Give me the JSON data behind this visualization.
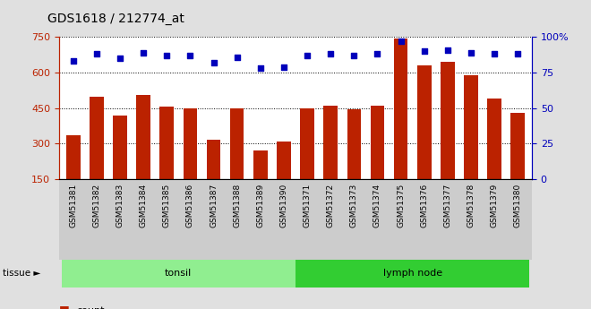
{
  "title": "GDS1618 / 212774_at",
  "samples": [
    "GSM51381",
    "GSM51382",
    "GSM51383",
    "GSM51384",
    "GSM51385",
    "GSM51386",
    "GSM51387",
    "GSM51388",
    "GSM51389",
    "GSM51390",
    "GSM51371",
    "GSM51372",
    "GSM51373",
    "GSM51374",
    "GSM51375",
    "GSM51376",
    "GSM51377",
    "GSM51378",
    "GSM51379",
    "GSM51380"
  ],
  "counts": [
    335,
    500,
    418,
    505,
    458,
    448,
    318,
    450,
    272,
    308,
    448,
    462,
    445,
    460,
    745,
    630,
    645,
    590,
    490,
    430
  ],
  "percentiles": [
    83,
    88,
    85,
    89,
    87,
    87,
    82,
    86,
    78,
    79,
    87,
    88,
    87,
    88,
    97,
    90,
    91,
    89,
    88,
    88
  ],
  "groups": [
    "tonsil",
    "tonsil",
    "tonsil",
    "tonsil",
    "tonsil",
    "tonsil",
    "tonsil",
    "tonsil",
    "tonsil",
    "tonsil",
    "lymph node",
    "lymph node",
    "lymph node",
    "lymph node",
    "lymph node",
    "lymph node",
    "lymph node",
    "lymph node",
    "lymph node",
    "lymph node"
  ],
  "tonsil_color": "#90EE90",
  "lymph_color": "#32CD32",
  "bar_color": "#BB2200",
  "dot_color": "#0000BB",
  "ylim_left": [
    150,
    750
  ],
  "ylim_right": [
    0,
    100
  ],
  "yticks_left": [
    150,
    300,
    450,
    600,
    750
  ],
  "yticks_right": [
    0,
    25,
    50,
    75,
    100
  ],
  "background_color": "#E0E0E0",
  "plot_bg": "#FFFFFF",
  "tick_bg": "#CCCCCC",
  "legend_count_color": "#BB2200",
  "legend_pct_color": "#0000BB",
  "bar_bottom": 150,
  "figsize": [
    6.6,
    3.45
  ],
  "dpi": 100
}
